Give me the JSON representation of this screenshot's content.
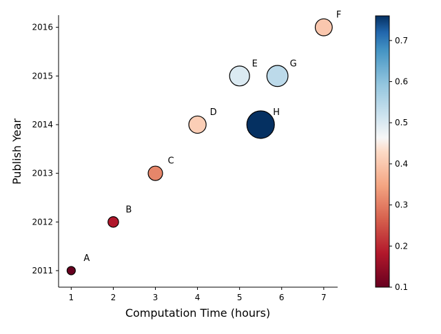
{
  "chart_data": {
    "type": "scatter",
    "xlabel": "Computation Time (hours)",
    "ylabel": "Publish Year",
    "xlim": [
      0.7,
      7.33
    ],
    "ylim": [
      2010.66,
      2016.25
    ],
    "xticks": [
      1,
      2,
      3,
      4,
      5,
      6,
      7
    ],
    "yticks": [
      2011,
      2012,
      2013,
      2014,
      2015,
      2016
    ],
    "colorbar": {
      "colormap": "RdBu",
      "range": [
        0.1,
        0.76
      ],
      "ticks": [
        0.1,
        0.2,
        0.3,
        0.4,
        0.5,
        0.6,
        0.7
      ]
    },
    "points": [
      {
        "label": "A",
        "x": 1.0,
        "y": 2011,
        "value": 0.1
      },
      {
        "label": "B",
        "x": 2.0,
        "y": 2012,
        "value": 0.18
      },
      {
        "label": "C",
        "x": 3.0,
        "y": 2013,
        "value": 0.31
      },
      {
        "label": "D",
        "x": 4.0,
        "y": 2014,
        "value": 0.41
      },
      {
        "label": "E",
        "x": 5.0,
        "y": 2015,
        "value": 0.5
      },
      {
        "label": "F",
        "x": 7.0,
        "y": 2016,
        "value": 0.4
      },
      {
        "label": "G",
        "x": 5.9,
        "y": 2015,
        "value": 0.54
      },
      {
        "label": "H",
        "x": 5.5,
        "y": 2014,
        "value": 0.76
      }
    ],
    "grid": false,
    "legend": "none"
  }
}
